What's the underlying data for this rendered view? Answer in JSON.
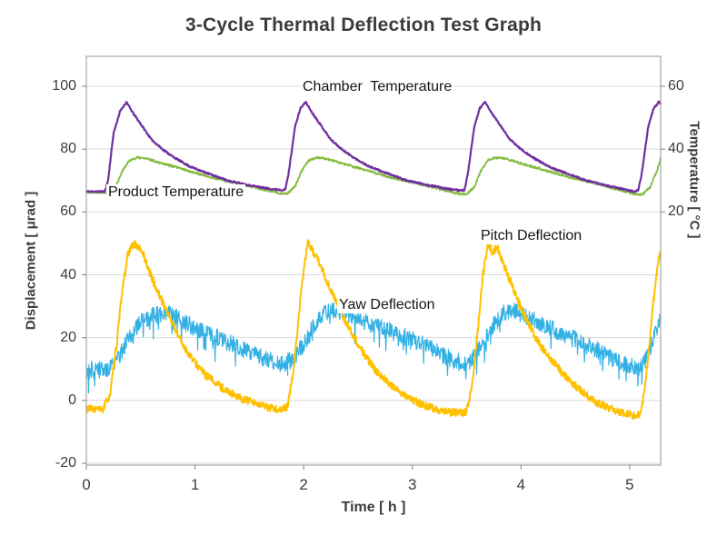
{
  "chart_data": {
    "type": "line",
    "title": "3-Cycle Thermal Deflection Test Graph",
    "xlabel": "Time [ h ]",
    "ylabel_left": "Displacement [ μrad ]",
    "ylabel_right": "Temperature [ °C ]",
    "xlim": [
      0,
      5.285
    ],
    "ylim_left": [
      -20,
      100
    ],
    "right_axis_offset": 40,
    "sample_step": 0.004,
    "grid": "horizontal-only",
    "axes": {
      "left_ticks": [
        100,
        80,
        60,
        40,
        20,
        0,
        -20
      ],
      "right_ticks": [
        60,
        40,
        20
      ],
      "x_ticks": [
        0,
        1,
        2,
        3,
        4,
        5
      ]
    },
    "annotations": [
      {
        "text": "Chamber  Temperature"
      },
      {
        "text": "Product Temperature"
      },
      {
        "text": "Pitch Deflection"
      },
      {
        "text": "Yaw Deflection"
      }
    ],
    "series": [
      {
        "name": "Yaw Deflection",
        "axis": "left",
        "unit": "μrad",
        "color": "#33B1E4",
        "width": 1.2,
        "noise": 2.8,
        "spike_prob": 0.05,
        "spike_mag": 6,
        "seed": 44,
        "anchors": [
          [
            0,
            9.5
          ],
          [
            0.2,
            10
          ],
          [
            0.3,
            14
          ],
          [
            0.4,
            20
          ],
          [
            0.5,
            25
          ],
          [
            0.6,
            27
          ],
          [
            0.75,
            27.5
          ],
          [
            0.9,
            25
          ],
          [
            1.05,
            22
          ],
          [
            1.2,
            20
          ],
          [
            1.35,
            18
          ],
          [
            1.5,
            15.5
          ],
          [
            1.65,
            13
          ],
          [
            1.8,
            11.5
          ],
          [
            1.9,
            13
          ],
          [
            2.0,
            18
          ],
          [
            2.1,
            24
          ],
          [
            2.2,
            28
          ],
          [
            2.35,
            28.5
          ],
          [
            2.5,
            26
          ],
          [
            2.65,
            24
          ],
          [
            2.8,
            22
          ],
          [
            2.95,
            20
          ],
          [
            3.1,
            18
          ],
          [
            3.25,
            15
          ],
          [
            3.4,
            12.5
          ],
          [
            3.5,
            11.5
          ],
          [
            3.55,
            13
          ],
          [
            3.65,
            18
          ],
          [
            3.75,
            24
          ],
          [
            3.85,
            28
          ],
          [
            3.95,
            28.5
          ],
          [
            4.1,
            26
          ],
          [
            4.25,
            23.5
          ],
          [
            4.4,
            21
          ],
          [
            4.55,
            18.5
          ],
          [
            4.7,
            16
          ],
          [
            4.85,
            13
          ],
          [
            5.0,
            11
          ],
          [
            5.1,
            10
          ],
          [
            5.15,
            13
          ],
          [
            5.2,
            18
          ],
          [
            5.25,
            23
          ],
          [
            5.285,
            26
          ]
        ]
      },
      {
        "name": "Pitch Deflection",
        "axis": "left",
        "unit": "μrad",
        "color": "#FFC000",
        "width": 2,
        "noise": 1.2,
        "seed": 33,
        "anchors": [
          [
            0,
            -2.5
          ],
          [
            0.15,
            -3
          ],
          [
            0.22,
            2
          ],
          [
            0.28,
            18
          ],
          [
            0.33,
            35
          ],
          [
            0.38,
            46
          ],
          [
            0.43,
            50
          ],
          [
            0.47,
            49
          ],
          [
            0.52,
            47
          ],
          [
            0.58,
            41
          ],
          [
            0.65,
            35
          ],
          [
            0.72,
            30
          ],
          [
            0.8,
            24
          ],
          [
            0.9,
            17
          ],
          [
            1.0,
            12
          ],
          [
            1.1,
            8
          ],
          [
            1.25,
            4
          ],
          [
            1.4,
            1
          ],
          [
            1.55,
            -1
          ],
          [
            1.7,
            -2.5
          ],
          [
            1.8,
            -3
          ],
          [
            1.85,
            -2
          ],
          [
            1.9,
            8
          ],
          [
            1.95,
            25
          ],
          [
            2.0,
            42
          ],
          [
            2.04,
            50
          ],
          [
            2.08,
            48
          ],
          [
            2.14,
            44
          ],
          [
            2.2,
            39
          ],
          [
            2.28,
            33
          ],
          [
            2.36,
            27
          ],
          [
            2.45,
            21
          ],
          [
            2.55,
            15
          ],
          [
            2.65,
            10
          ],
          [
            2.8,
            5
          ],
          [
            2.95,
            1
          ],
          [
            3.1,
            -1.5
          ],
          [
            3.3,
            -3.5
          ],
          [
            3.45,
            -4
          ],
          [
            3.5,
            -3.5
          ],
          [
            3.55,
            5
          ],
          [
            3.6,
            22
          ],
          [
            3.65,
            40
          ],
          [
            3.7,
            50
          ],
          [
            3.74,
            47
          ],
          [
            3.78,
            49
          ],
          [
            3.83,
            44
          ],
          [
            3.9,
            38
          ],
          [
            3.98,
            31
          ],
          [
            4.06,
            25
          ],
          [
            4.15,
            19
          ],
          [
            4.25,
            14
          ],
          [
            4.4,
            8
          ],
          [
            4.55,
            3
          ],
          [
            4.7,
            -1
          ],
          [
            4.9,
            -3.5
          ],
          [
            5.05,
            -5
          ],
          [
            5.1,
            -4
          ],
          [
            5.14,
            4
          ],
          [
            5.18,
            18
          ],
          [
            5.23,
            35
          ],
          [
            5.27,
            46
          ],
          [
            5.285,
            48
          ]
        ]
      },
      {
        "name": "Product Temperature",
        "axis": "right",
        "unit": "°C",
        "color": "#86BC42",
        "width": 1.8,
        "noise": 0.35,
        "seed": 22,
        "anchors": [
          [
            0,
            26.3
          ],
          [
            0.2,
            26.3
          ],
          [
            0.27,
            28
          ],
          [
            0.33,
            33
          ],
          [
            0.4,
            36.5
          ],
          [
            0.47,
            37.3
          ],
          [
            0.55,
            37
          ],
          [
            0.7,
            35.5
          ],
          [
            0.85,
            34
          ],
          [
            1.0,
            32.5
          ],
          [
            1.15,
            31
          ],
          [
            1.3,
            29.8
          ],
          [
            1.5,
            28.2
          ],
          [
            1.7,
            26.6
          ],
          [
            1.8,
            25.9
          ],
          [
            1.85,
            25.9
          ],
          [
            1.92,
            28
          ],
          [
            1.98,
            33
          ],
          [
            2.05,
            36.5
          ],
          [
            2.12,
            37.3
          ],
          [
            2.2,
            37
          ],
          [
            2.35,
            35.5
          ],
          [
            2.5,
            34
          ],
          [
            2.65,
            32.5
          ],
          [
            2.8,
            31
          ],
          [
            2.95,
            29.8
          ],
          [
            3.15,
            28.2
          ],
          [
            3.35,
            26.4
          ],
          [
            3.45,
            25.7
          ],
          [
            3.5,
            25.7
          ],
          [
            3.57,
            28
          ],
          [
            3.63,
            33
          ],
          [
            3.7,
            36.5
          ],
          [
            3.77,
            37.3
          ],
          [
            3.85,
            37
          ],
          [
            4.0,
            35.5
          ],
          [
            4.15,
            34
          ],
          [
            4.3,
            32.5
          ],
          [
            4.45,
            31
          ],
          [
            4.6,
            29.8
          ],
          [
            4.8,
            28.0
          ],
          [
            5.0,
            26.2
          ],
          [
            5.07,
            25.5
          ],
          [
            5.12,
            25.7
          ],
          [
            5.19,
            28
          ],
          [
            5.25,
            33
          ],
          [
            5.285,
            37
          ]
        ]
      },
      {
        "name": "Chamber Temperature",
        "axis": "right",
        "unit": "°C",
        "color": "#7030A0",
        "width": 2.2,
        "noise": 0.25,
        "seed": 11,
        "anchors": [
          [
            0,
            26.5
          ],
          [
            0.17,
            26.5
          ],
          [
            0.2,
            30
          ],
          [
            0.25,
            45
          ],
          [
            0.31,
            52
          ],
          [
            0.37,
            55
          ],
          [
            0.42,
            52
          ],
          [
            0.5,
            48
          ],
          [
            0.6,
            43
          ],
          [
            0.7,
            40
          ],
          [
            0.8,
            37.5
          ],
          [
            0.95,
            34.5
          ],
          [
            1.1,
            32.5
          ],
          [
            1.3,
            30
          ],
          [
            1.5,
            28.5
          ],
          [
            1.7,
            27.3
          ],
          [
            1.8,
            27
          ],
          [
            1.83,
            27
          ],
          [
            1.86,
            32
          ],
          [
            1.92,
            47
          ],
          [
            1.97,
            53
          ],
          [
            2.02,
            55
          ],
          [
            2.07,
            52
          ],
          [
            2.15,
            48
          ],
          [
            2.25,
            43
          ],
          [
            2.35,
            40
          ],
          [
            2.45,
            37.5
          ],
          [
            2.6,
            34.5
          ],
          [
            2.75,
            32.5
          ],
          [
            2.95,
            30
          ],
          [
            3.15,
            28.5
          ],
          [
            3.35,
            27.2
          ],
          [
            3.45,
            26.8
          ],
          [
            3.48,
            27
          ],
          [
            3.51,
            32
          ],
          [
            3.57,
            47
          ],
          [
            3.62,
            53
          ],
          [
            3.67,
            55
          ],
          [
            3.72,
            52
          ],
          [
            3.8,
            48
          ],
          [
            3.9,
            43
          ],
          [
            4.0,
            40
          ],
          [
            4.1,
            37.5
          ],
          [
            4.25,
            34.5
          ],
          [
            4.4,
            32.5
          ],
          [
            4.6,
            30
          ],
          [
            4.8,
            28.3
          ],
          [
            5.0,
            26.8
          ],
          [
            5.05,
            26.5
          ],
          [
            5.08,
            27
          ],
          [
            5.11,
            32
          ],
          [
            5.17,
            47
          ],
          [
            5.22,
            53
          ],
          [
            5.27,
            55
          ],
          [
            5.285,
            54.5
          ]
        ]
      }
    ]
  }
}
